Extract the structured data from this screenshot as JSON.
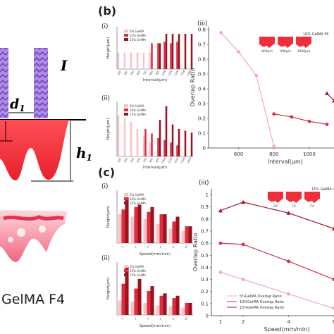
{
  "panel_labels": {
    "b": "(b)",
    "c": "(c)"
  },
  "subpanel_labels": {
    "b_i": "(i)",
    "b_ii": "(ii)",
    "b_iii": "(iii)",
    "c_i": "(i)",
    "c_ii": "(ii)",
    "c_iii": "(iii)"
  },
  "schematic": {
    "interval_symbol": "I",
    "width_symbol_base": "d",
    "width_symbol_sub": "1",
    "height_symbol_base": "h",
    "height_symbol_sub": "1",
    "caption": "GelMA F4"
  },
  "colors": {
    "c5": "#f6c3c8",
    "c10": "#df2b3f",
    "c15": "#9b111e",
    "line_light": "#f4a9b5",
    "line_mid": "#d23047",
    "line_dark": "#a3142a",
    "gel": "#ee2f3a",
    "purple": "#9a6ad8"
  },
  "chart_data": [
    {
      "id": "b_i",
      "type": "bar",
      "ylabel": "Height(μm)",
      "xlabel": "Interval(μm)",
      "categories": [
        "300",
        "400",
        "500",
        "600",
        "700",
        "800",
        "900",
        "1000",
        "1100",
        "1200",
        "1300",
        "1400"
      ],
      "series": [
        {
          "name": "5% GelMA",
          "values": [
            35,
            35,
            35,
            35,
            35,
            35,
            0,
            0,
            0,
            0,
            0,
            0
          ]
        },
        {
          "name": "10% GelMA",
          "values": [
            0,
            0,
            0,
            0,
            0,
            55,
            55,
            58,
            55,
            58,
            0,
            0
          ]
        },
        {
          "name": "15% GelMA",
          "values": [
            0,
            0,
            0,
            0,
            0,
            0,
            55,
            75,
            75,
            75,
            75,
            75
          ]
        }
      ],
      "ylim": [
        0,
        90
      ]
    },
    {
      "id": "b_ii",
      "type": "bar",
      "ylabel": "Height(μm)",
      "xlabel": "Interval(μm)",
      "categories": [
        "300",
        "400",
        "500",
        "600",
        "700",
        "800",
        "900",
        "1000",
        "1100",
        "1200",
        "1300",
        "1400"
      ],
      "series": [
        {
          "name": "5% GelMA",
          "values": [
            45,
            42,
            38,
            30,
            22,
            15,
            0,
            0,
            0,
            0,
            0,
            0
          ]
        },
        {
          "name": "10% GelMA",
          "values": [
            0,
            0,
            0,
            0,
            30,
            25,
            20,
            18,
            15,
            12,
            0,
            0
          ]
        },
        {
          "name": "15% GelMA",
          "values": [
            0,
            0,
            0,
            0,
            0,
            0,
            40,
            55,
            35,
            30,
            28,
            26
          ]
        }
      ],
      "ylim": [
        0,
        60
      ]
    },
    {
      "id": "b_iii",
      "type": "line",
      "ylabel": "Overlap Ratio",
      "xlabel": "Interval(μm)",
      "inset_title": "10% GelMA F6",
      "inset_labels": [
        "800μm",
        "900μm",
        "1000μm"
      ],
      "xticks": [
        600,
        800,
        1000
      ],
      "yticks": [
        0,
        0.1,
        0.2,
        0.3,
        0.4,
        0.5,
        0.6,
        0.7,
        0.8
      ],
      "xlim": [
        430,
        1140
      ],
      "ylim": [
        0,
        0.82
      ],
      "series": [
        {
          "x": [
            500,
            600,
            700,
            800
          ],
          "y": [
            0.78,
            0.65,
            0.49,
            0.01
          ],
          "style": "light"
        },
        {
          "x": [
            800,
            900,
            1000,
            1100
          ],
          "y": [
            0.23,
            0.21,
            0.18,
            0.16
          ],
          "style": "mid"
        },
        {
          "x": [
            1100,
            1140
          ],
          "y": [
            0.37,
            0.32
          ],
          "style": "dark"
        }
      ]
    },
    {
      "id": "c_i",
      "type": "bar",
      "ylabel": "Height(μm)",
      "xlabel": "Speed(mm/min)",
      "categories": [
        "1",
        "2",
        "4",
        "6",
        "8",
        "10"
      ],
      "series": [
        {
          "name": "5% GelMA",
          "values": [
            60,
            55,
            50,
            40,
            30,
            25
          ]
        },
        {
          "name": "10% GelMA",
          "values": [
            70,
            75,
            65,
            60,
            45,
            35
          ]
        },
        {
          "name": "15% GelMA",
          "values": [
            95,
            80,
            75,
            60,
            55,
            35
          ]
        }
      ],
      "ylim": [
        0,
        110
      ]
    },
    {
      "id": "c_ii",
      "type": "bar",
      "ylabel": "Height(μm)",
      "xlabel": "Speed(mm/min)",
      "categories": [
        "1",
        "2",
        "4",
        "6",
        "8",
        "10"
      ],
      "series": [
        {
          "name": "5% GelMA",
          "values": [
            30,
            28,
            25,
            20,
            18,
            15
          ]
        },
        {
          "name": "10% GelMA",
          "values": [
            65,
            55,
            50,
            40,
            35,
            25
          ]
        },
        {
          "name": "15% GelMA",
          "values": [
            100,
            75,
            60,
            45,
            40,
            25
          ]
        }
      ],
      "ylim": [
        0,
        110
      ]
    },
    {
      "id": "c_iii",
      "type": "line",
      "ylabel": "Overlap Ratio",
      "xlabel": "Speed(mm/min)",
      "inset_title": "15% GelMA interval 10",
      "inset_labels": [
        "F8",
        "F6",
        "F4"
      ],
      "xticks": [
        1,
        2,
        4,
        6
      ],
      "yticks": [
        0,
        0.1,
        0.2,
        0.3,
        0.4,
        0.5,
        0.6,
        0.7,
        0.8,
        0.9,
        1.0
      ],
      "xlim": [
        0.6,
        6
      ],
      "ylim": [
        0,
        1.05
      ],
      "legend": [
        "5%GelMA Overlap Ratio",
        "10%GelMA Overlap Ratio",
        "15%GelMA Overlap Ratio"
      ],
      "series": [
        {
          "x": [
            1,
            2,
            4,
            6
          ],
          "y": [
            0.36,
            0.3,
            0.18,
            0.06
          ],
          "style": "light"
        },
        {
          "x": [
            1,
            2,
            4,
            6
          ],
          "y": [
            0.6,
            0.59,
            0.45,
            0.3
          ],
          "style": "mid"
        },
        {
          "x": [
            1,
            2,
            4,
            6
          ],
          "y": [
            0.87,
            0.94,
            0.85,
            0.72
          ],
          "style": "dark"
        }
      ]
    }
  ]
}
